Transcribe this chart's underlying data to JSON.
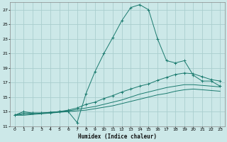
{
  "xlabel": "Humidex (Indice chaleur)",
  "bg_color": "#cce8e8",
  "grid_color": "#aacece",
  "line_color": "#1a7a6e",
  "xlim": [
    -0.5,
    23.5
  ],
  "ylim": [
    11,
    28
  ],
  "xticks": [
    0,
    1,
    2,
    3,
    4,
    5,
    6,
    7,
    8,
    9,
    10,
    11,
    12,
    13,
    14,
    15,
    16,
    17,
    18,
    19,
    20,
    21,
    22,
    23
  ],
  "yticks": [
    11,
    13,
    15,
    17,
    19,
    21,
    23,
    25,
    27
  ],
  "series1_x": [
    0,
    1,
    2,
    3,
    4,
    5,
    6,
    7,
    8,
    9,
    10,
    11,
    12,
    13,
    14,
    15,
    16,
    17,
    18,
    19,
    20,
    21,
    22,
    23
  ],
  "series1_y": [
    12.5,
    13.0,
    12.8,
    12.8,
    12.8,
    13.0,
    13.0,
    11.5,
    15.5,
    18.5,
    21.0,
    23.2,
    25.5,
    27.3,
    27.7,
    27.0,
    23.0,
    20.0,
    19.7,
    20.0,
    18.0,
    17.2,
    17.2,
    16.5
  ],
  "series2_x": [
    0,
    1,
    2,
    3,
    4,
    5,
    6,
    7,
    8,
    9,
    10,
    11,
    12,
    13,
    14,
    15,
    16,
    17,
    18,
    19,
    20,
    21,
    22,
    23
  ],
  "series2_y": [
    12.5,
    12.8,
    12.8,
    12.8,
    12.9,
    13.0,
    13.2,
    13.5,
    14.0,
    14.3,
    14.8,
    15.2,
    15.7,
    16.1,
    16.5,
    16.8,
    17.3,
    17.7,
    18.1,
    18.3,
    18.2,
    17.8,
    17.4,
    17.2
  ],
  "series3_x": [
    0,
    1,
    2,
    3,
    4,
    5,
    6,
    7,
    8,
    9,
    10,
    11,
    12,
    13,
    14,
    15,
    16,
    17,
    18,
    19,
    20,
    21,
    22,
    23
  ],
  "series3_y": [
    12.5,
    12.6,
    12.7,
    12.8,
    12.9,
    13.0,
    13.1,
    13.3,
    13.5,
    13.7,
    14.0,
    14.3,
    14.6,
    15.0,
    15.4,
    15.7,
    16.0,
    16.3,
    16.5,
    16.7,
    16.7,
    16.6,
    16.5,
    16.4
  ],
  "series4_x": [
    0,
    1,
    2,
    3,
    4,
    5,
    6,
    7,
    8,
    9,
    10,
    11,
    12,
    13,
    14,
    15,
    16,
    17,
    18,
    19,
    20,
    21,
    22,
    23
  ],
  "series4_y": [
    12.5,
    12.5,
    12.6,
    12.7,
    12.8,
    12.9,
    13.0,
    13.1,
    13.2,
    13.4,
    13.6,
    13.8,
    14.1,
    14.4,
    14.7,
    15.0,
    15.3,
    15.5,
    15.8,
    16.0,
    16.1,
    16.0,
    15.9,
    15.8
  ]
}
